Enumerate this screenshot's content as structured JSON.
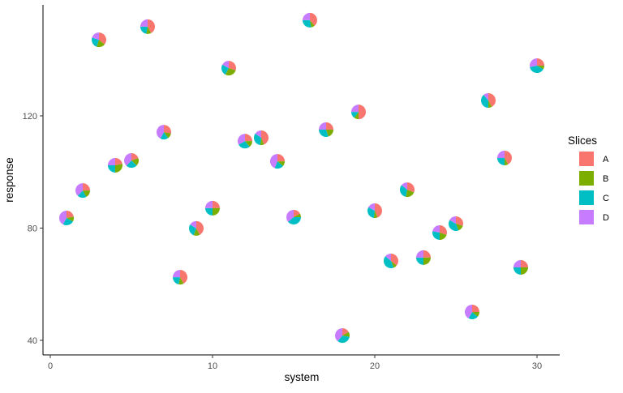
{
  "chart_data": {
    "type": "scatter",
    "subtype": "scatter-pie",
    "xlabel": "system",
    "ylabel": "response",
    "xlim": [
      -0.5,
      31.4
    ],
    "ylim": [
      35,
      157
    ],
    "xticks": [
      0,
      10,
      20,
      30
    ],
    "yticks": [
      40,
      80,
      120
    ],
    "grid": false,
    "legend": {
      "title": "Slices",
      "position": "right",
      "entries": [
        "A",
        "B",
        "C",
        "D"
      ],
      "colors": [
        "#F8766D",
        "#7CAE00",
        "#00BFC4",
        "#C77CFF"
      ]
    },
    "points": [
      {
        "x": 1,
        "y": 83.6,
        "slices": [
          0.22,
          0.11,
          0.25,
          0.42
        ]
      },
      {
        "x": 2,
        "y": 93.4,
        "slices": [
          0.25,
          0.17,
          0.2,
          0.38
        ]
      },
      {
        "x": 3,
        "y": 147.1,
        "slices": [
          0.36,
          0.19,
          0.25,
          0.2
        ]
      },
      {
        "x": 4,
        "y": 102.4,
        "slices": [
          0.22,
          0.28,
          0.25,
          0.25
        ]
      },
      {
        "x": 5,
        "y": 104.1,
        "slices": [
          0.2,
          0.17,
          0.25,
          0.38
        ]
      },
      {
        "x": 6,
        "y": 151.8,
        "slices": [
          0.42,
          0.11,
          0.22,
          0.25
        ]
      },
      {
        "x": 7,
        "y": 114.2,
        "slices": [
          0.28,
          0.12,
          0.18,
          0.42
        ]
      },
      {
        "x": 8,
        "y": 62.5,
        "slices": [
          0.42,
          0.11,
          0.22,
          0.25
        ]
      },
      {
        "x": 9,
        "y": 79.9,
        "slices": [
          0.42,
          0.14,
          0.28,
          0.16
        ]
      },
      {
        "x": 10,
        "y": 87.1,
        "slices": [
          0.25,
          0.25,
          0.25,
          0.25
        ]
      },
      {
        "x": 11,
        "y": 137.0,
        "slices": [
          0.3,
          0.28,
          0.25,
          0.17
        ]
      },
      {
        "x": 12,
        "y": 111.0,
        "slices": [
          0.25,
          0.14,
          0.28,
          0.33
        ]
      },
      {
        "x": 13,
        "y": 112.2,
        "slices": [
          0.44,
          0.08,
          0.33,
          0.15
        ]
      },
      {
        "x": 14,
        "y": 103.8,
        "slices": [
          0.25,
          0.11,
          0.2,
          0.44
        ]
      },
      {
        "x": 15,
        "y": 83.9,
        "slices": [
          0.17,
          0.08,
          0.39,
          0.36
        ]
      },
      {
        "x": 16,
        "y": 154.1,
        "slices": [
          0.39,
          0.08,
          0.28,
          0.25
        ]
      },
      {
        "x": 17,
        "y": 115.1,
        "slices": [
          0.25,
          0.2,
          0.3,
          0.25
        ]
      },
      {
        "x": 18,
        "y": 41.7,
        "slices": [
          0.17,
          0.11,
          0.33,
          0.39
        ]
      },
      {
        "x": 19,
        "y": 121.4,
        "slices": [
          0.5,
          0.1,
          0.15,
          0.25
        ]
      },
      {
        "x": 20,
        "y": 86.2,
        "slices": [
          0.44,
          0.08,
          0.31,
          0.17
        ]
      },
      {
        "x": 21,
        "y": 68.3,
        "slices": [
          0.36,
          0.08,
          0.42,
          0.14
        ]
      },
      {
        "x": 22,
        "y": 93.7,
        "slices": [
          0.31,
          0.22,
          0.33,
          0.14
        ]
      },
      {
        "x": 23,
        "y": 69.5,
        "slices": [
          0.25,
          0.25,
          0.25,
          0.25
        ]
      },
      {
        "x": 24,
        "y": 78.4,
        "slices": [
          0.3,
          0.2,
          0.28,
          0.22
        ]
      },
      {
        "x": 25,
        "y": 81.6,
        "slices": [
          0.3,
          0.14,
          0.39,
          0.17
        ]
      },
      {
        "x": 26,
        "y": 50.1,
        "slices": [
          0.25,
          0.11,
          0.22,
          0.42
        ]
      },
      {
        "x": 27,
        "y": 125.5,
        "slices": [
          0.42,
          0.08,
          0.39,
          0.11
        ]
      },
      {
        "x": 28,
        "y": 105.0,
        "slices": [
          0.42,
          0.08,
          0.25,
          0.25
        ]
      },
      {
        "x": 29,
        "y": 66.0,
        "slices": [
          0.25,
          0.25,
          0.25,
          0.25
        ]
      },
      {
        "x": 30,
        "y": 137.9,
        "slices": [
          0.25,
          0.08,
          0.39,
          0.28
        ]
      }
    ]
  }
}
